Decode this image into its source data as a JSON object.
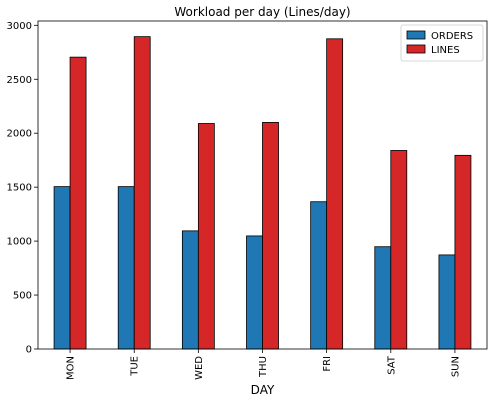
{
  "chart_data": {
    "type": "bar",
    "title": "Workload per day (Lines/day)",
    "xlabel": "DAY",
    "ylabel": "",
    "categories": [
      "MON",
      "TUE",
      "WED",
      "THU",
      "FRI",
      "SAT",
      "SUN"
    ],
    "series": [
      {
        "name": "ORDERS",
        "color": "#1f77b4",
        "values": [
          1505,
          1505,
          1095,
          1048,
          1365,
          948,
          872
        ]
      },
      {
        "name": "LINES",
        "color": "#d62728",
        "values": [
          2705,
          2895,
          2090,
          2100,
          2875,
          1840,
          1795
        ]
      }
    ],
    "ylim": [
      0,
      3040
    ],
    "yticks": [
      0,
      500,
      1000,
      1500,
      2000,
      2500,
      3000
    ],
    "grid": false,
    "legend_position": "top-right"
  }
}
